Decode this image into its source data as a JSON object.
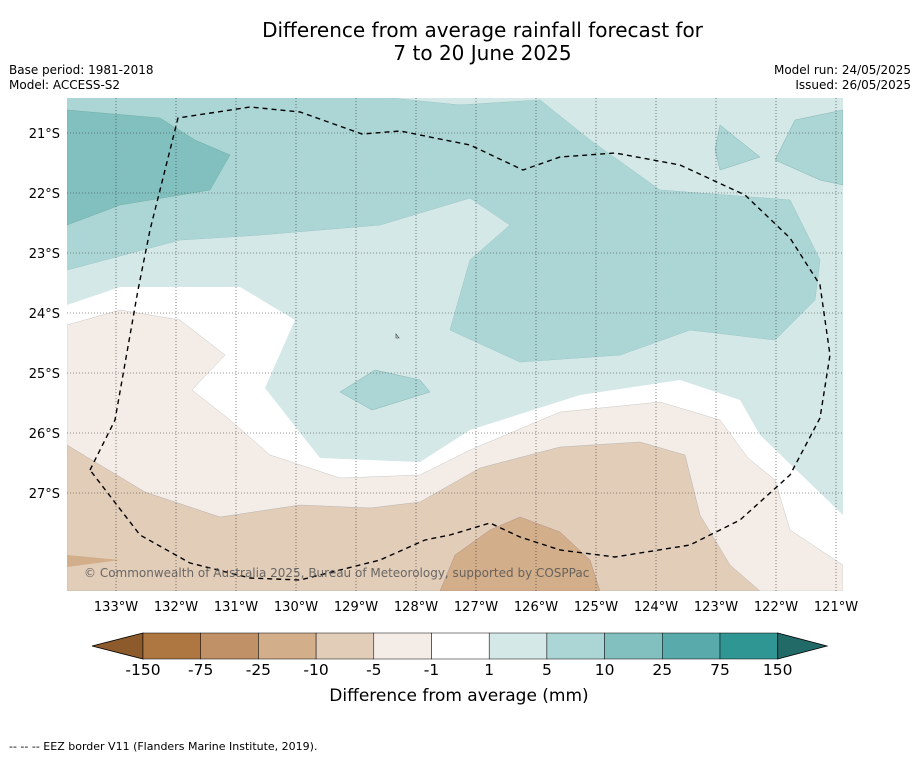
{
  "title": {
    "line1": "Difference from average rainfall forecast for",
    "line2": "7 to 20 June 2025"
  },
  "meta": {
    "base_period": "Base period: 1981-2018",
    "model": "Model: ACCESS-S2",
    "model_run": "Model run: 24/05/2025",
    "issued": "Issued: 26/05/2025"
  },
  "map": {
    "latitude_labels": [
      "21°S",
      "22°S",
      "23°S",
      "24°S",
      "25°S",
      "26°S",
      "27°S"
    ],
    "longitude_labels": [
      "133°W",
      "132°W",
      "131°W",
      "130°W",
      "129°W",
      "128°W",
      "127°W",
      "126°W",
      "125°W",
      "124°W",
      "123°W",
      "122°W",
      "121°W"
    ],
    "credit": "© Commonwealth of Australia 2025, Bureau of Meteorology, supported by COSPPac",
    "eez_border_style": "dashed"
  },
  "colorbar": {
    "labels": [
      "-150",
      "-75",
      "-25",
      "-10",
      "-5",
      "-1",
      "1",
      "5",
      "10",
      "25",
      "75",
      "150"
    ],
    "colors": [
      "#8c5a2b",
      "#ae7641",
      "#c09167",
      "#d2ae8a",
      "#e2cdb9",
      "#f4ede7",
      "#ffffff",
      "#d3e8e7",
      "#abd6d5",
      "#82c0bf",
      "#58abaa",
      "#2f9693",
      "#216a67"
    ],
    "title": "Difference from average (mm)"
  },
  "footnote": "-- -- -- EEZ border V11 (Flanders Marine Institute, 2019)."
}
